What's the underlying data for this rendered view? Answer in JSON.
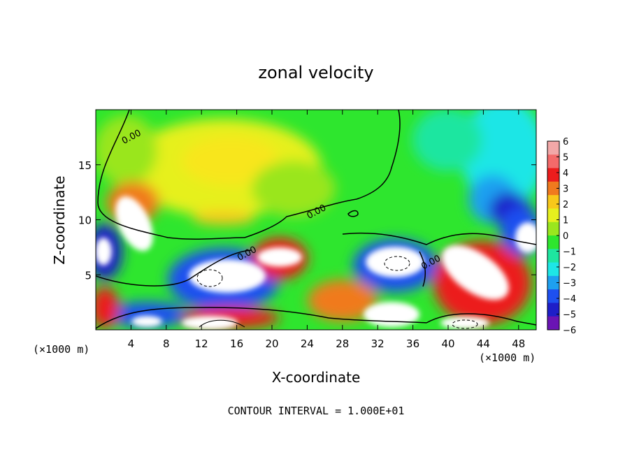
{
  "chart_data": {
    "type": "heatmap",
    "title": "zonal velocity",
    "xlabel": "X-coordinate",
    "ylabel": "Z-coordinate",
    "x_unit": "(×1000 m)",
    "y_unit": "(×1000 m)",
    "xlim": [
      0,
      50
    ],
    "ylim": [
      0,
      20
    ],
    "x_ticks": [
      4,
      8,
      12,
      16,
      20,
      24,
      28,
      32,
      36,
      40,
      44,
      48
    ],
    "y_ticks": [
      5,
      10,
      15
    ],
    "colorbar": {
      "ticks": [
        6,
        5,
        4,
        3,
        2,
        1,
        0,
        -1,
        -2,
        -3,
        -4,
        -5,
        -6
      ],
      "colors": [
        "#f2a8a8",
        "#f46a6a",
        "#ec1c1c",
        "#f07a1e",
        "#f8c81a",
        "#e6f01e",
        "#9ae61e",
        "#2ee62e",
        "#1ee6a0",
        "#1ee6e6",
        "#1ea0f0",
        "#1e50f0",
        "#1e1ec8",
        "#6a14b4"
      ]
    },
    "contour_label": "0.00",
    "contour_interval_text": "CONTOUR INTERVAL = 1.000E+01",
    "zero_contour_labels": [
      {
        "x": 4.2,
        "y": 17.3
      },
      {
        "x": 25.2,
        "y": 10.5
      },
      {
        "x": 17.3,
        "y": 6.7
      },
      {
        "x": 38.2,
        "y": 5.9
      }
    ]
  }
}
